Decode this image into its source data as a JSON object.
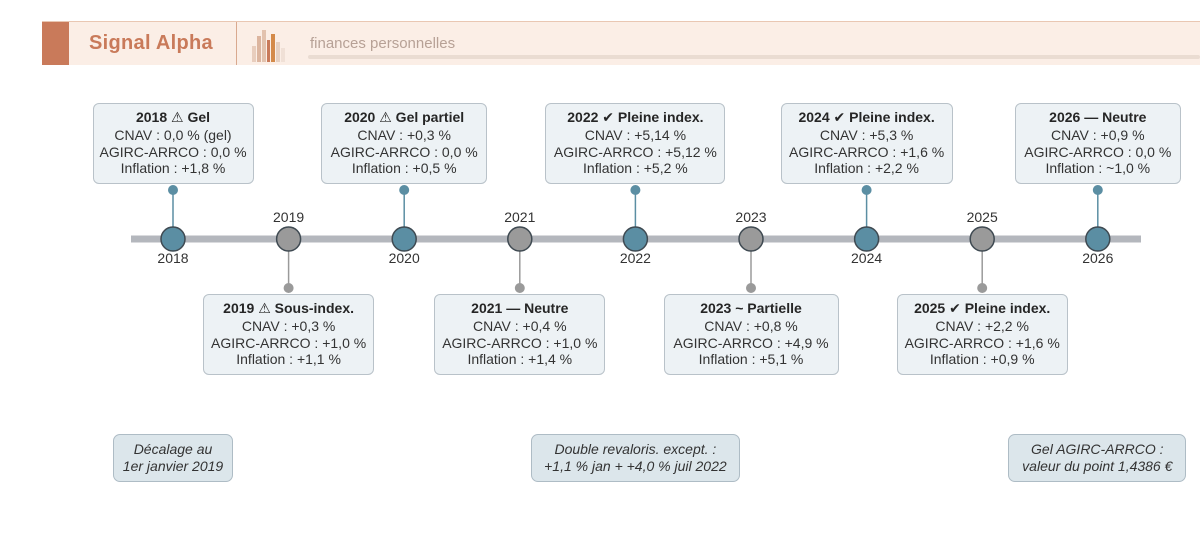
{
  "header": {
    "brand": "Signal Alpha",
    "subtitle": "finances personnelles"
  },
  "timeline": {
    "years": [
      {
        "year": "2018",
        "status": "done",
        "side": "top",
        "title": "2018 ⚠ Gel",
        "lines": [
          "CNAV : 0,0 % (gel)",
          "AGIRC-ARRCO : 0,0 %",
          "Inflation : +1,8 %"
        ]
      },
      {
        "year": "2019",
        "status": "pending",
        "side": "bottom",
        "title": "2019 ⚠ Sous-index.",
        "lines": [
          "CNAV : +0,3 %",
          "AGIRC-ARRCO : +1,0 %",
          "Inflation : +1,1 %"
        ]
      },
      {
        "year": "2020",
        "status": "done",
        "side": "top",
        "title": "2020 ⚠ Gel partiel",
        "lines": [
          "CNAV : +0,3 %",
          "AGIRC-ARRCO : 0,0 %",
          "Inflation : +0,5 %"
        ]
      },
      {
        "year": "2021",
        "status": "pending",
        "side": "bottom",
        "title": "2021 — Neutre",
        "lines": [
          "CNAV : +0,4 %",
          "AGIRC-ARRCO : +1,0 %",
          "Inflation : +1,4 %"
        ]
      },
      {
        "year": "2022",
        "status": "done",
        "side": "top",
        "title": "2022 ✔ Pleine index.",
        "lines": [
          "CNAV : +5,14 %",
          "AGIRC-ARRCO : +5,12 %",
          "Inflation : +5,2 %"
        ]
      },
      {
        "year": "2023",
        "status": "pending",
        "side": "bottom",
        "title": "2023 ~ Partielle",
        "lines": [
          "CNAV : +0,8 %",
          "AGIRC-ARRCO : +4,9 %",
          "Inflation : +5,1 %"
        ]
      },
      {
        "year": "2024",
        "status": "done",
        "side": "top",
        "title": "2024 ✔ Pleine index.",
        "lines": [
          "CNAV : +5,3 %",
          "AGIRC-ARRCO : +1,6 %",
          "Inflation : +2,2 %"
        ]
      },
      {
        "year": "2025",
        "status": "pending",
        "side": "bottom",
        "title": "2025 ✔ Pleine index.",
        "lines": [
          "CNAV : +2,2 %",
          "AGIRC-ARRCO : +1,6 %",
          "Inflation : +0,9 %"
        ]
      },
      {
        "year": "2026",
        "status": "done",
        "side": "top",
        "title": "2026 — Neutre",
        "lines": [
          "CNAV : +0,9 %",
          "AGIRC-ARRCO : 0,0 %",
          "Inflation : ~1,0 %"
        ]
      }
    ],
    "notes": [
      {
        "anchor_year": "2019",
        "lines": [
          "Décalage au",
          "1er janvier 2019"
        ]
      },
      {
        "anchor_year": "2022",
        "lines": [
          "Double revaloris. except. :",
          "+1,1 % jan + +4,0 % juil 2022"
        ]
      },
      {
        "anchor_year": "2026",
        "lines": [
          "Gel AGIRC-ARRCO :",
          "valeur du point 1,4386 €"
        ]
      }
    ]
  },
  "colors": {
    "accent": "#c97a5a",
    "node_done": "#5b8ea3",
    "node_pending": "#9a9a9a",
    "axis": "#b4b7bd",
    "box_bg": "#edf2f5",
    "note_bg": "#dce6eb"
  }
}
